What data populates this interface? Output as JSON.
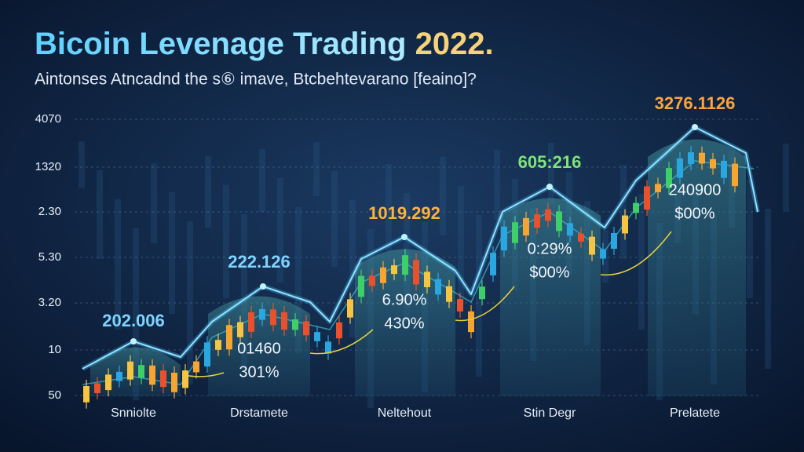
{
  "header": {
    "title": "Bicoin Levenage Trading",
    "title_year": "2022.",
    "subtitle": "Aintonses Atncadnd the s⑥ imave, Btcbehtevarano [feaino]?"
  },
  "y_labels": [
    "4070",
    "1320",
    "2.30",
    "5.30",
    "3.20",
    "10",
    "50"
  ],
  "groups": [
    {
      "label": "Snniolte",
      "peak": "202.006",
      "line1": null,
      "line2": null
    },
    {
      "label": "Drstamete",
      "peak": "222.126",
      "line1": "01460",
      "line2": "301%"
    },
    {
      "label": "Neltehout",
      "peak": "1019.292",
      "line1": "6.90%",
      "line2": "430%"
    },
    {
      "label": "Stin Degr",
      "peak": "605:216",
      "line1": "0:29%",
      "line2": "$00%"
    },
    {
      "label": "Prelatete",
      "peak": "3276.1126",
      "line1": "240900",
      "line2": "$00%"
    }
  ]
}
